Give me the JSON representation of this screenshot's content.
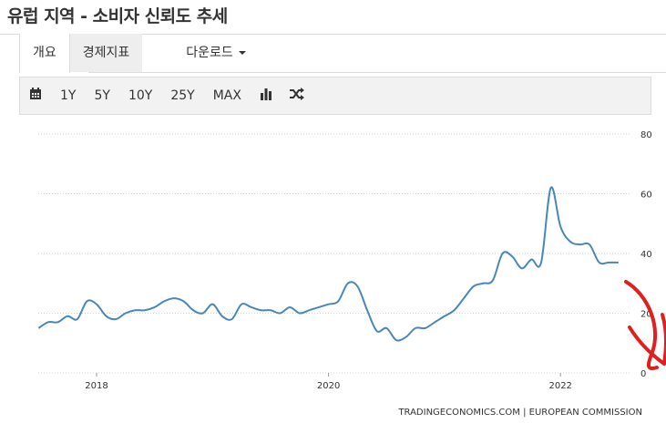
{
  "page": {
    "title": "유럽 지역 - 소비자 신뢰도 추세"
  },
  "tabs": [
    {
      "label": "개요"
    },
    {
      "label": "경제지표"
    },
    {
      "label": "다운로드"
    }
  ],
  "toolbar": {
    "calendar_icon": "calendar-icon",
    "ranges": [
      "1Y",
      "5Y",
      "10Y",
      "25Y",
      "MAX"
    ],
    "chart_type_icon": "bar-chart-icon",
    "compare_icon": "shuffle-icon"
  },
  "source": "TRADINGECONOMICS.COM  |  EUROPEAN  COMMISSION",
  "colors": {
    "line": "#4a87b8",
    "annotation": "#e02020",
    "grid": "#d0d0d0"
  },
  "chart_data": {
    "type": "line",
    "title": "",
    "xlabel": "",
    "ylabel": "",
    "x_ticks": [
      "2018",
      "2020",
      "2022"
    ],
    "y_ticks": [
      "0",
      "20",
      "40",
      "60",
      "80"
    ],
    "ylim": [
      0,
      80
    ],
    "xlim": [
      "2017-07",
      "2022-07"
    ],
    "grid": "horizontal dotted",
    "y_axis_position": "right",
    "series": [
      {
        "x": [
          "2017-07",
          "2017-08",
          "2017-09",
          "2017-10",
          "2017-11",
          "2017-12",
          "2018-01",
          "2018-02",
          "2018-03",
          "2018-04",
          "2018-05",
          "2018-06",
          "2018-07",
          "2018-08",
          "2018-09",
          "2018-10",
          "2018-11",
          "2018-12",
          "2019-01",
          "2019-02",
          "2019-03",
          "2019-04",
          "2019-05",
          "2019-06",
          "2019-07",
          "2019-08",
          "2019-09",
          "2019-10",
          "2019-11",
          "2019-12",
          "2020-01",
          "2020-02",
          "2020-03",
          "2020-04",
          "2020-05",
          "2020-06",
          "2020-07",
          "2020-08",
          "2020-09",
          "2020-10",
          "2020-11",
          "2020-12",
          "2021-01",
          "2021-02",
          "2021-03",
          "2021-04",
          "2021-05",
          "2021-06",
          "2021-07",
          "2021-08",
          "2021-09",
          "2021-10",
          "2021-11",
          "2021-12",
          "2022-01",
          "2022-02",
          "2022-03",
          "2022-04",
          "2022-05",
          "2022-06",
          "2022-07"
        ],
        "values": [
          15,
          17,
          17,
          19,
          18,
          24,
          23,
          19,
          18,
          20,
          21,
          21,
          22,
          24,
          25,
          24,
          21,
          20,
          23,
          19,
          18,
          23,
          22,
          21,
          21,
          20,
          22,
          20,
          21,
          22,
          23,
          24,
          30,
          29,
          21,
          14,
          15,
          11,
          12,
          15,
          15,
          17,
          19,
          21,
          25,
          29,
          30,
          31,
          40,
          39,
          35,
          38,
          37,
          62,
          49,
          44,
          43,
          43,
          37,
          37,
          37
        ],
        "values_note": ""
      }
    ],
    "annotations": [
      "red hand-drawn downward arrow near end of series"
    ]
  }
}
